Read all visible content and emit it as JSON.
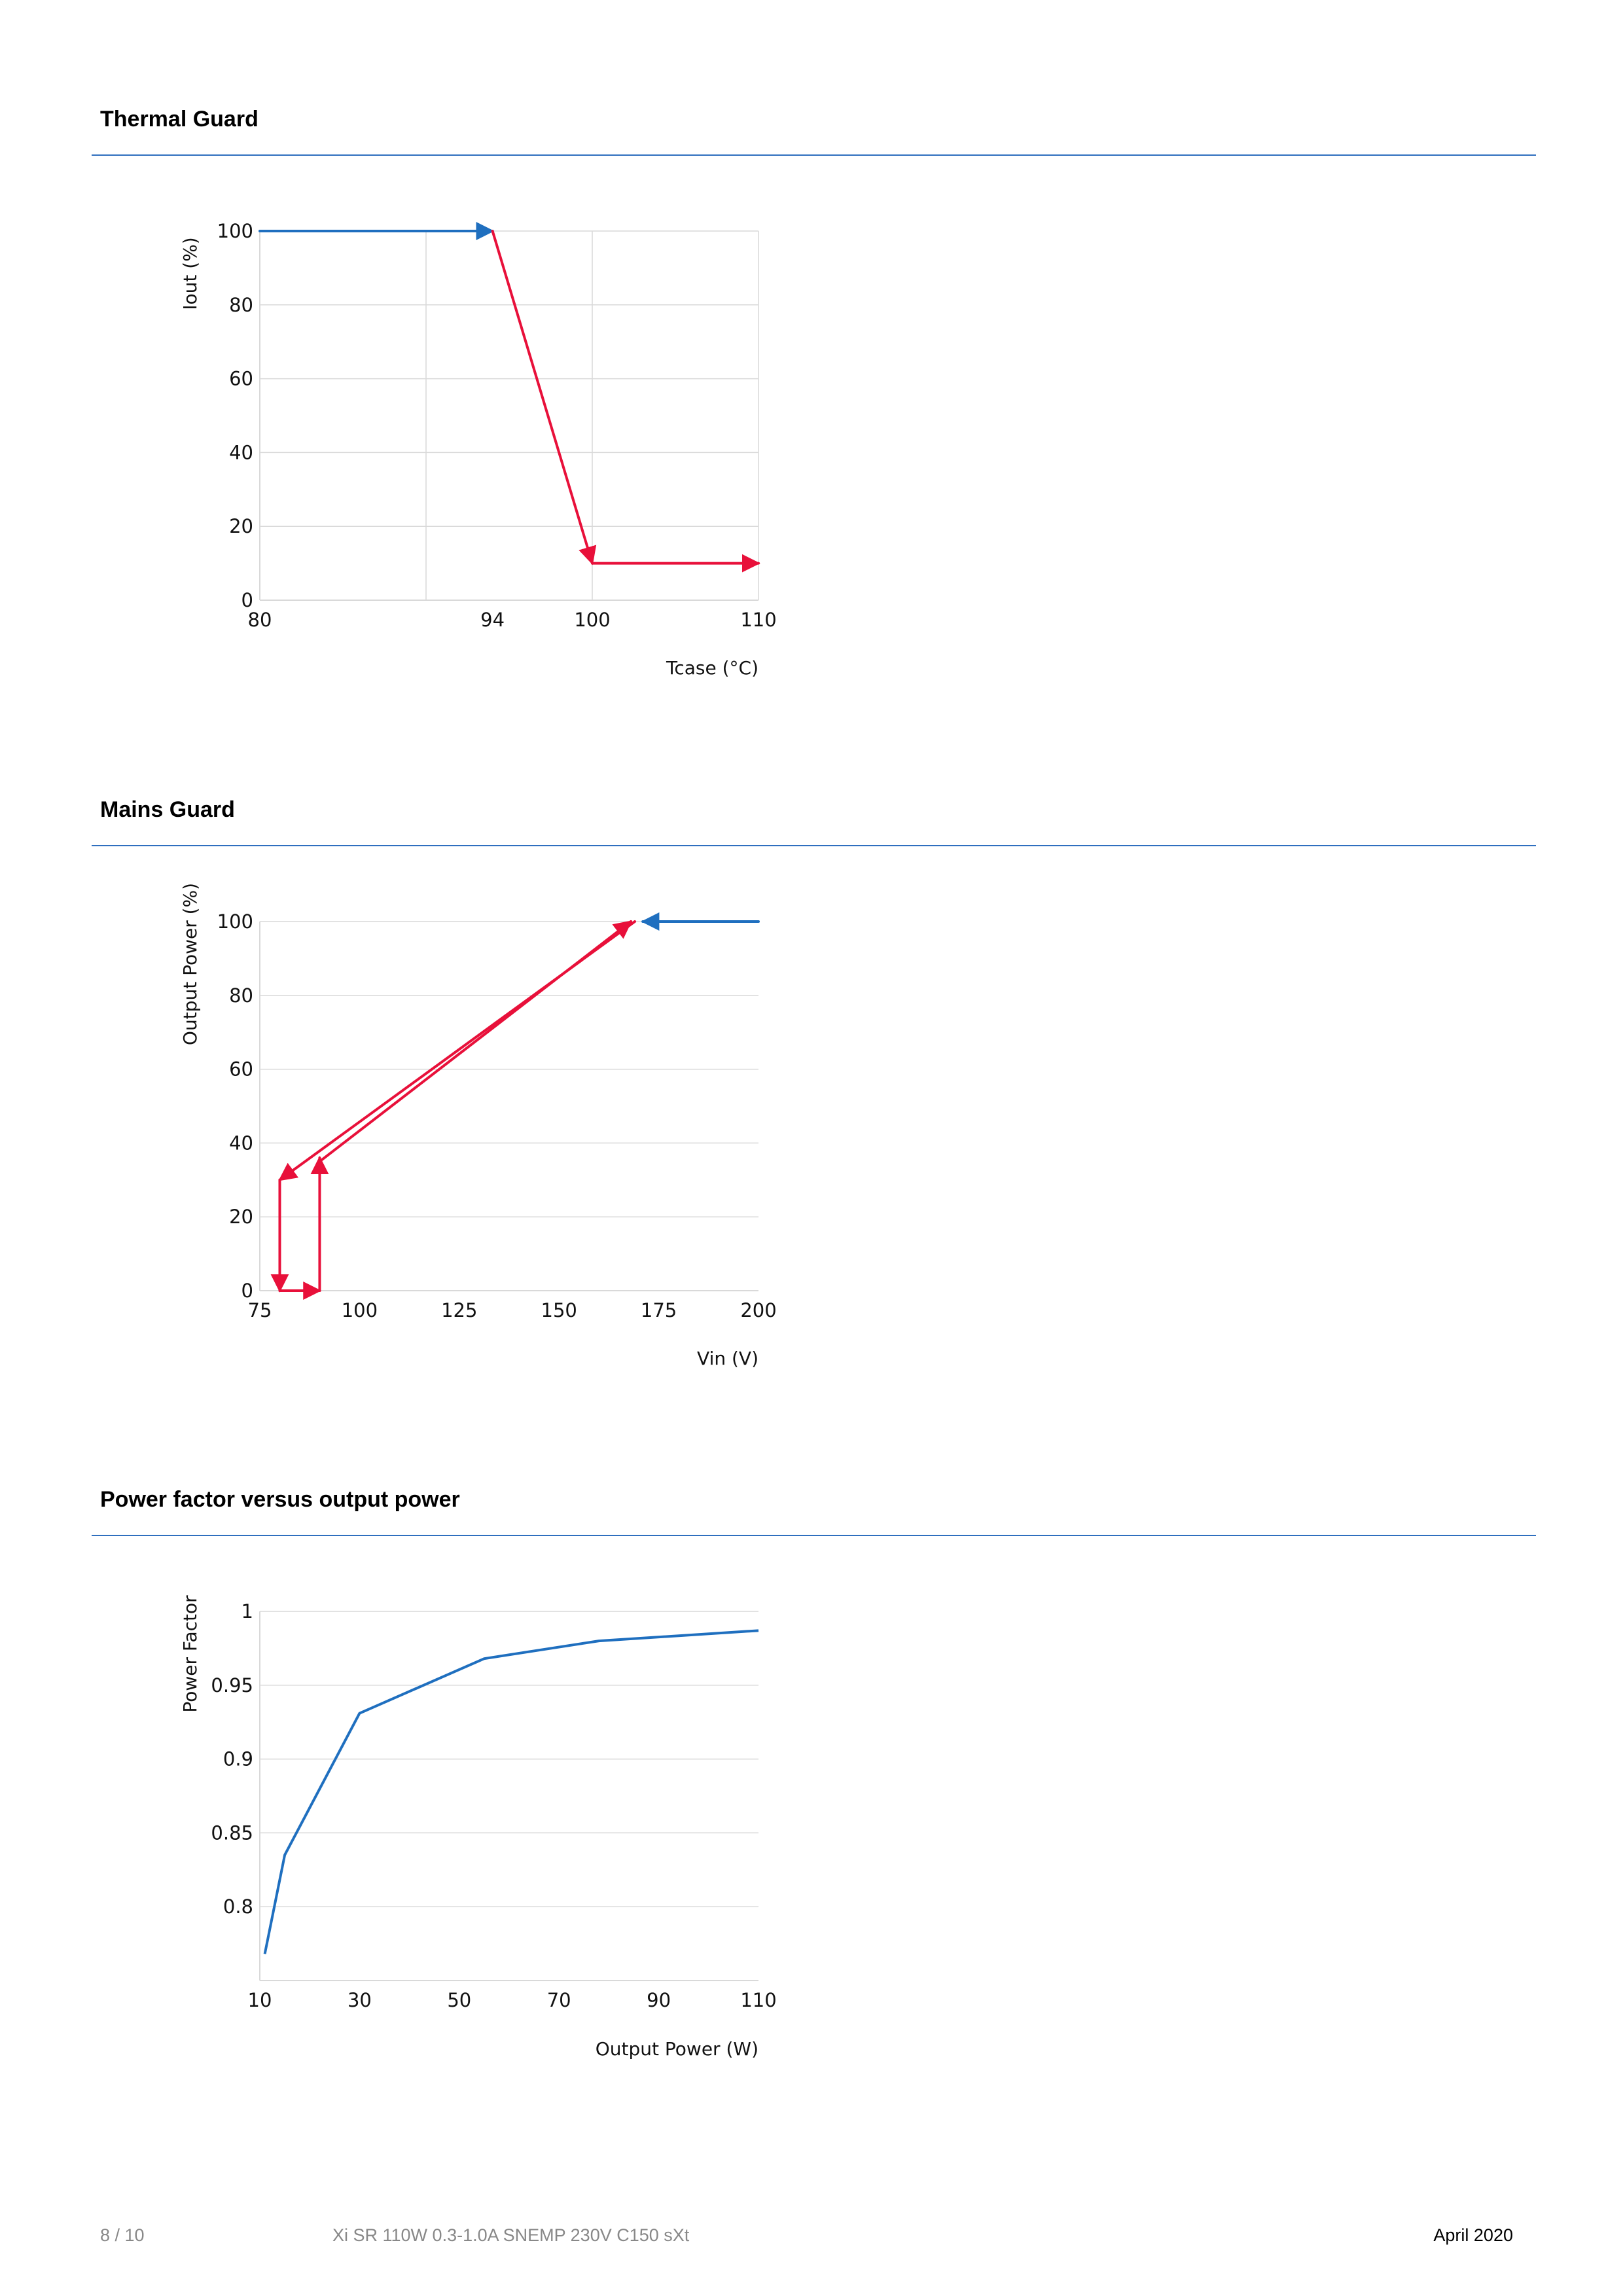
{
  "sections": [
    {
      "title": "Thermal Guard"
    },
    {
      "title": "Mains Guard"
    },
    {
      "title": "Power factor versus output power"
    }
  ],
  "chart_data": [
    {
      "type": "line",
      "xlabel": "Tcase (°C)",
      "ylabel": "Iout (%)",
      "xticks": [
        "80",
        "94",
        "100",
        "110"
      ],
      "xtick_values": [
        80,
        94,
        100,
        110
      ],
      "xlim": [
        80,
        110
      ],
      "yticks": [
        "0",
        "20",
        "40",
        "60",
        "80",
        "100"
      ],
      "ytick_values": [
        0,
        20,
        40,
        60,
        80,
        100
      ],
      "ylim": [
        0,
        100
      ],
      "xgrid_values": [
        90,
        100,
        110
      ],
      "grid": true,
      "colors": {
        "normal": "#1f6fbf",
        "guard": "#e8103a"
      },
      "segments": [
        {
          "color": "normal",
          "from": [
            80,
            100
          ],
          "to": [
            94,
            100
          ],
          "arrow": true
        },
        {
          "color": "guard",
          "from": [
            94,
            100
          ],
          "to": [
            100,
            10
          ],
          "arrow": true
        },
        {
          "color": "guard",
          "from": [
            100,
            10
          ],
          "to": [
            110,
            10
          ],
          "arrow": true
        }
      ]
    },
    {
      "type": "line",
      "xlabel": "Vin (V)",
      "ylabel": "Output Power (%)",
      "xticks": [
        "75",
        "100",
        "125",
        "150",
        "175",
        "200"
      ],
      "xtick_values": [
        75,
        100,
        125,
        150,
        175,
        200
      ],
      "xlim": [
        75,
        200
      ],
      "yticks": [
        "0",
        "20",
        "40",
        "60",
        "80",
        "100"
      ],
      "ytick_values": [
        0,
        20,
        40,
        60,
        80,
        100
      ],
      "ylim": [
        0,
        100
      ],
      "xgrid_values": [],
      "grid": true,
      "colors": {
        "normal": "#1f6fbf",
        "guard": "#e8103a"
      },
      "segments": [
        {
          "color": "normal",
          "from": [
            200,
            100
          ],
          "to": [
            171,
            100
          ],
          "arrow": true
        },
        {
          "color": "guard",
          "from": [
            169,
            100
          ],
          "to": [
            80,
            30
          ],
          "arrow": true
        },
        {
          "color": "guard",
          "from": [
            80,
            30
          ],
          "to": [
            80,
            0
          ],
          "arrow": true
        },
        {
          "color": "guard",
          "from": [
            80,
            0
          ],
          "to": [
            90,
            0
          ],
          "arrow": true
        },
        {
          "color": "guard",
          "from": [
            90,
            0
          ],
          "to": [
            90,
            36
          ],
          "arrow": true
        },
        {
          "color": "guard",
          "from": [
            90,
            35
          ],
          "to": [
            168,
            100
          ],
          "arrow": true
        }
      ]
    },
    {
      "type": "line",
      "xlabel": "Output Power (W)",
      "ylabel": "Power Factor",
      "xticks": [
        "10",
        "30",
        "50",
        "70",
        "90",
        "110"
      ],
      "xtick_values": [
        10,
        30,
        50,
        70,
        90,
        110
      ],
      "xlim": [
        10,
        110
      ],
      "yticks": [
        "0.8",
        "0.85",
        "0.9",
        "0.95",
        "1"
      ],
      "ytick_values": [
        0.8,
        0.85,
        0.9,
        0.95,
        1
      ],
      "ylim": [
        0.75,
        1
      ],
      "xgrid_values": [],
      "grid": true,
      "colors": {
        "normal": "#1f6fbf"
      },
      "series": [
        {
          "color": "normal",
          "x": [
            11,
            15,
            30,
            55,
            78,
            110
          ],
          "y": [
            0.768,
            0.835,
            0.931,
            0.968,
            0.98,
            0.987
          ]
        }
      ]
    }
  ],
  "footer": {
    "page": "8 / 10",
    "product": "Xi SR 110W 0.3-1.0A SNEMP 230V C150 sXt",
    "date": "April 2020"
  }
}
